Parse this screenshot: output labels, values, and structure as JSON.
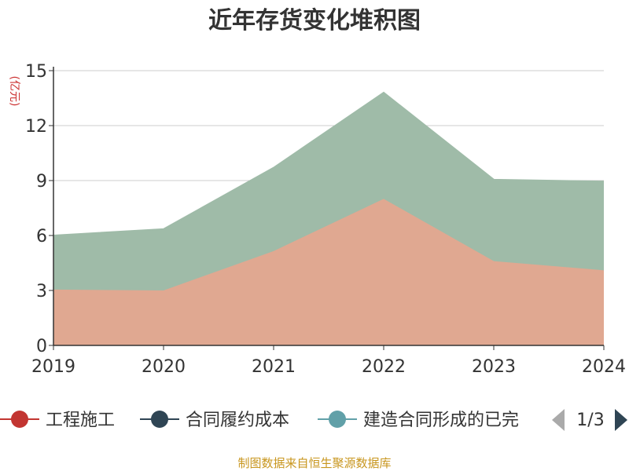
{
  "chart_data": {
    "type": "area",
    "title": "近年存货变化堆积图",
    "y_unit": "(亿元)",
    "x": [
      "2019",
      "2020",
      "2021",
      "2022",
      "2023",
      "2024"
    ],
    "ylim": [
      0,
      15
    ],
    "y_ticks": [
      "0",
      "3",
      "6",
      "9",
      "12",
      "15"
    ],
    "grid": true,
    "stacked": true,
    "series": [
      {
        "name": "工程施工",
        "values": [
          3.05,
          3.0,
          5.15,
          8.0,
          4.6,
          4.1
        ],
        "color": "#e0a891",
        "legend_color": "#c23531"
      },
      {
        "name": "合同履约成本",
        "values": [
          2.95,
          3.35,
          4.55,
          5.8,
          4.45,
          4.85
        ],
        "color": "#9fbba8",
        "legend_color": "#2f4554"
      }
    ],
    "legend": {
      "position": "bottom",
      "items": [
        {
          "label": "工程施工",
          "color": "#c23531"
        },
        {
          "label": "合同履约成本",
          "color": "#2f4554"
        },
        {
          "label": "建造合同形成的已完",
          "color": "#61a0a8"
        }
      ],
      "page": "1/3"
    },
    "source": "制图数据来自恒生聚源数据库"
  }
}
